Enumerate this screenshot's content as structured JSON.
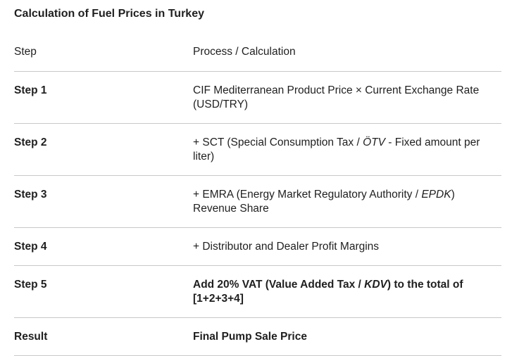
{
  "title": "Calculation of Fuel Prices in Turkey",
  "table": {
    "headers": [
      "Step",
      "Process / Calculation"
    ],
    "rows": [
      {
        "step": "Step 1",
        "bold": false,
        "segments": [
          {
            "text": "CIF Mediterranean Product Price × Current Exchange Rate (USD/TRY)"
          }
        ]
      },
      {
        "step": "Step 2",
        "bold": false,
        "segments": [
          {
            "text": "+ SCT (Special Consumption Tax / "
          },
          {
            "text": "ÖTV",
            "italic": true
          },
          {
            "text": " - Fixed amount per liter)"
          }
        ]
      },
      {
        "step": "Step 3",
        "bold": false,
        "segments": [
          {
            "text": "+ EMRA (Energy Market Regulatory Authority / "
          },
          {
            "text": "EPDK",
            "italic": true
          },
          {
            "text": ") Revenue Share"
          }
        ]
      },
      {
        "step": "Step 4",
        "bold": false,
        "segments": [
          {
            "text": "+ Distributor and Dealer Profit Margins"
          }
        ]
      },
      {
        "step": "Step 5",
        "bold": true,
        "segments": [
          {
            "text": "Add 20% VAT (Value Added Tax / "
          },
          {
            "text": "KDV",
            "italic": true
          },
          {
            "text": ") to the total of [1+2+3+4]"
          }
        ]
      },
      {
        "step": "Result",
        "bold": true,
        "segments": [
          {
            "text": "Final Pump Sale Price"
          }
        ]
      }
    ]
  }
}
